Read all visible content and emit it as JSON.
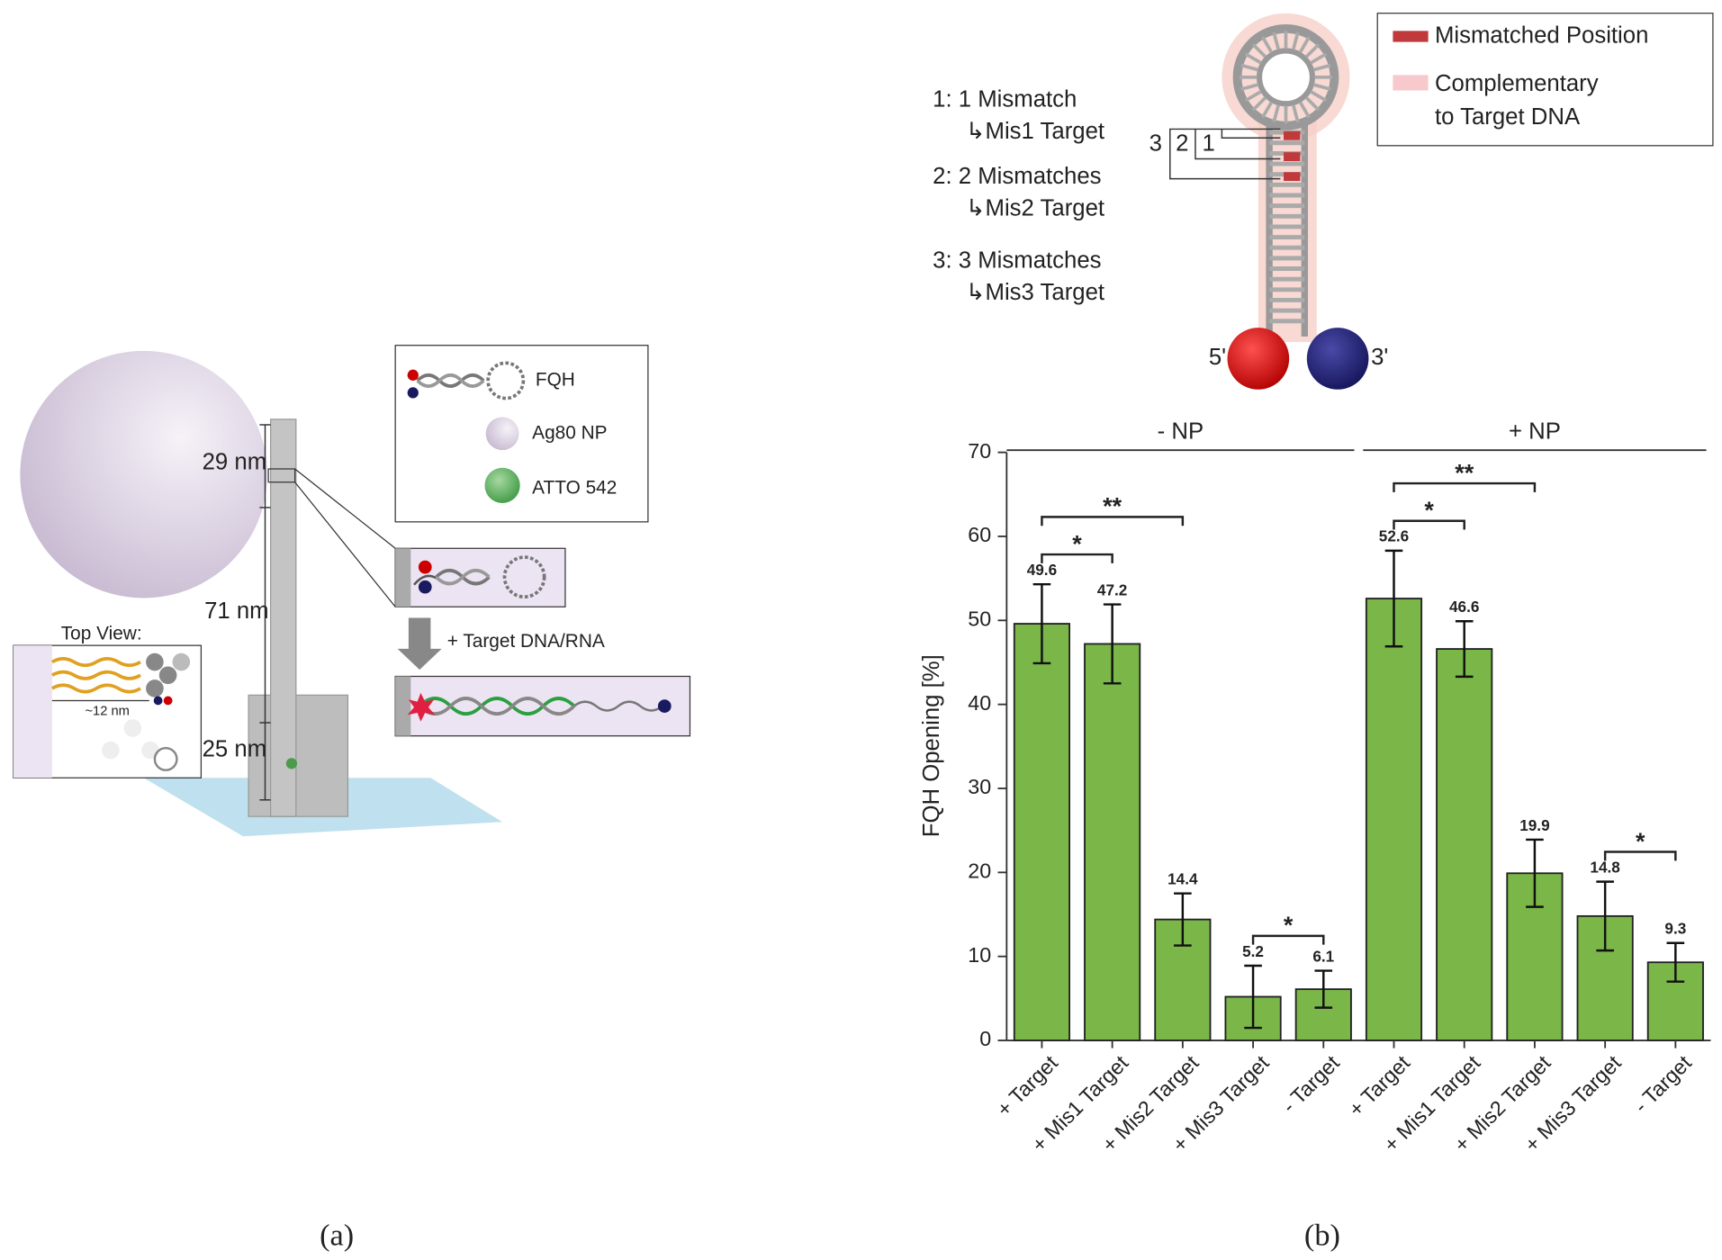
{
  "panel_a": {
    "scale_labels": [
      "29 nm",
      "71 nm",
      "25 nm"
    ],
    "top_view_title": "Top View:",
    "top_view_scale": "~12 nm",
    "legend": [
      "FQH",
      "Ag80 NP",
      "ATTO 542"
    ],
    "step_label": "+ Target DNA/RNA",
    "caption": "(a)"
  },
  "panel_b": {
    "legend": {
      "mismatch": "Mismatched Position",
      "complementary": [
        "Complementary",
        "to Target DNA"
      ]
    },
    "variants": [
      {
        "label": "1: 1 Mismatch",
        "target": "↳Mis1 Target"
      },
      {
        "label": "2: 2 Mismatches",
        "target": "↳Mis2 Target"
      },
      {
        "label": "3: 3 Mismatches",
        "target": "↳Mis3 Target"
      }
    ],
    "positions": [
      "3",
      "2",
      "1"
    ],
    "ends": [
      "5'",
      "3'"
    ],
    "caption": "(b)"
  },
  "chart_data": {
    "type": "bar",
    "y_label": "FQH Opening [%]",
    "categories": [
      "+ Target",
      "+ Mis1 Target",
      "+ Mis2 Target",
      "+ Mis3 Target",
      "- Target",
      "+ Target",
      "+ Mis1 Target",
      "+ Mis2 Target",
      "+ Mis3 Target",
      "- Target"
    ],
    "values": [
      49.6,
      47.2,
      14.4,
      5.2,
      6.1,
      52.6,
      46.6,
      19.9,
      14.8,
      9.3
    ],
    "errors": [
      4.7,
      4.7,
      3.1,
      3.7,
      2.2,
      5.7,
      3.3,
      4.0,
      4.1,
      2.3
    ],
    "color": "#7ab648",
    "ylim": [
      0,
      70
    ],
    "yticks": [
      0,
      10,
      20,
      30,
      40,
      50,
      60,
      70
    ],
    "groups": [
      {
        "label": "- NP",
        "from": 0,
        "to": 4
      },
      {
        "label": "+ NP",
        "from": 5,
        "to": 9
      }
    ],
    "significance": [
      {
        "from": 0,
        "to": 1,
        "label": "*"
      },
      {
        "from": 0,
        "to": 2,
        "label": "**"
      },
      {
        "from": 3,
        "to": 4,
        "label": "*"
      },
      {
        "from": 5,
        "to": 6,
        "label": "*"
      },
      {
        "from": 5,
        "to": 7,
        "label": "**"
      },
      {
        "from": 8,
        "to": 9,
        "label": "*"
      }
    ]
  }
}
